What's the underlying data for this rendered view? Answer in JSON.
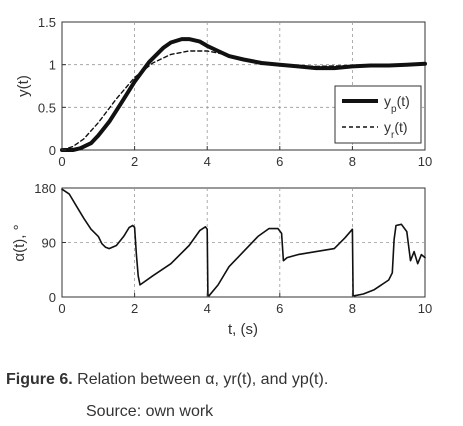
{
  "caption": {
    "label": "Figure 6.",
    "text": " Relation between α, yr(t), and yp(t)."
  },
  "source": "Source: own work",
  "chart_data": [
    {
      "type": "line",
      "ylabel": "y(t)",
      "xlabel": "",
      "xlim": [
        0,
        10
      ],
      "ylim": [
        0,
        1.5
      ],
      "xticks": [
        "0",
        "2",
        "4",
        "6",
        "8",
        "10"
      ],
      "yticks": [
        "0",
        "0.5",
        "1",
        "1.5"
      ],
      "grid": true,
      "legend_position": "bottom-right",
      "series": [
        {
          "name": "yp(t)",
          "style": "solid-thick",
          "x": [
            0,
            0.3,
            0.5,
            0.8,
            1.0,
            1.3,
            1.6,
            2.0,
            2.4,
            2.8,
            3.0,
            3.3,
            3.5,
            3.8,
            4.0,
            4.3,
            4.6,
            5.0,
            5.5,
            6.0,
            6.5,
            7.0,
            7.5,
            8.0,
            8.5,
            9.0,
            9.5,
            10.0
          ],
          "y": [
            0,
            0.0,
            0.02,
            0.08,
            0.17,
            0.33,
            0.53,
            0.8,
            1.03,
            1.2,
            1.26,
            1.3,
            1.3,
            1.27,
            1.22,
            1.16,
            1.1,
            1.06,
            1.02,
            1.0,
            0.98,
            0.96,
            0.96,
            0.98,
            0.99,
            0.99,
            1.0,
            1.01
          ]
        },
        {
          "name": "yr(t)",
          "style": "dashed",
          "x": [
            0,
            0.3,
            0.6,
            1.0,
            1.5,
            2.0,
            2.5,
            3.0,
            3.5,
            4.0,
            4.5,
            5.0,
            5.5,
            6.0,
            7.0,
            8.0,
            9.0,
            10.0
          ],
          "y": [
            0,
            0.04,
            0.13,
            0.32,
            0.6,
            0.85,
            1.02,
            1.12,
            1.16,
            1.16,
            1.12,
            1.07,
            1.03,
            1.0,
            0.98,
            0.99,
            1.0,
            1.0
          ]
        }
      ]
    },
    {
      "type": "line",
      "ylabel": "α(t), °",
      "xlabel": "t, (s)",
      "xlim": [
        0,
        10
      ],
      "ylim": [
        0,
        180
      ],
      "xticks": [
        "0",
        "2",
        "4",
        "6",
        "8",
        "10"
      ],
      "yticks": [
        "0",
        "90",
        "180"
      ],
      "grid": true,
      "series": [
        {
          "name": "",
          "style": "solid",
          "x": [
            0,
            0.2,
            0.4,
            0.6,
            0.8,
            1.0,
            1.1,
            1.2,
            1.3,
            1.5,
            1.7,
            1.85,
            1.95,
            2.0,
            2.05,
            2.1,
            2.15,
            2.5,
            3.0,
            3.5,
            3.8,
            3.95,
            4.0,
            4.02,
            4.05,
            4.3,
            4.6,
            5.0,
            5.4,
            5.7,
            5.95,
            6.05,
            6.1,
            6.2,
            6.5,
            7.0,
            7.5,
            7.8,
            8.0,
            8.02,
            8.05,
            8.3,
            8.6,
            9.0,
            9.1,
            9.15,
            9.2,
            9.35,
            9.5,
            9.6,
            9.7,
            9.8,
            9.9,
            10.0
          ],
          "y": [
            178,
            170,
            150,
            130,
            112,
            100,
            88,
            82,
            80,
            85,
            100,
            115,
            118,
            115,
            70,
            35,
            20,
            35,
            55,
            85,
            110,
            116,
            112,
            3,
            2,
            20,
            50,
            75,
            100,
            113,
            113,
            105,
            60,
            65,
            70,
            75,
            80,
            98,
            112,
            3,
            2,
            5,
            12,
            28,
            40,
            95,
            118,
            120,
            108,
            60,
            75,
            55,
            70,
            65
          ]
        }
      ]
    }
  ]
}
